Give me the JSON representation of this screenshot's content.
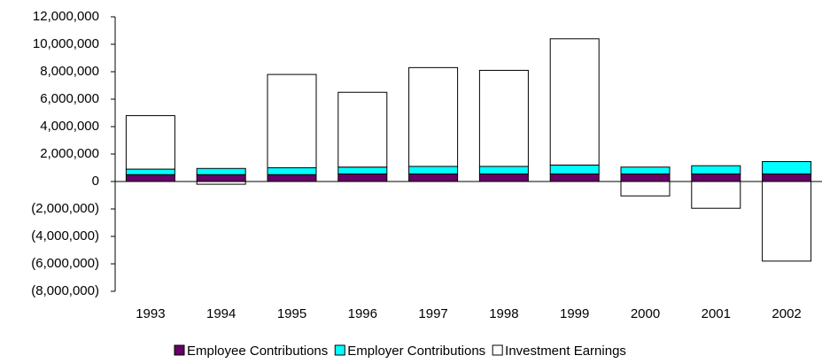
{
  "chart_data": {
    "type": "stacked_bar",
    "categories": [
      "1993",
      "1994",
      "1995",
      "1996",
      "1997",
      "1998",
      "1999",
      "2000",
      "2001",
      "2002"
    ],
    "series": [
      {
        "name": "Employee Contributions",
        "color": "#660066",
        "values": [
          500000,
          500000,
          500000,
          550000,
          550000,
          550000,
          550000,
          550000,
          550000,
          550000
        ]
      },
      {
        "name": "Employer Contributions",
        "color": "#00ffff",
        "values": [
          400000,
          450000,
          500000,
          500000,
          550000,
          550000,
          650000,
          500000,
          600000,
          900000
        ]
      },
      {
        "name": "Investment Earnings",
        "color": "#ffffff",
        "values": [
          3900000,
          -200000,
          6800000,
          5450000,
          7200000,
          7000000,
          9200000,
          -1050000,
          -1950000,
          -5800000
        ]
      }
    ],
    "ylim": [
      -8000000,
      12000000
    ],
    "yticks": [
      {
        "value": -8000000,
        "label": "(8,000,000)"
      },
      {
        "value": -6000000,
        "label": "(6,000,000)"
      },
      {
        "value": -4000000,
        "label": "(4,000,000)"
      },
      {
        "value": -2000000,
        "label": "(2,000,000)"
      },
      0,
      {
        "value": 2000000,
        "label": "2,000,000"
      },
      {
        "value": 4000000,
        "label": "4,000,000"
      },
      {
        "value": 6000000,
        "label": "6,000,000"
      },
      {
        "value": 8000000,
        "label": "8,000,000"
      },
      {
        "value": 10000000,
        "label": "10,000,000"
      },
      {
        "value": 12000000,
        "label": "12,000,000"
      }
    ],
    "legend": "bottom"
  }
}
